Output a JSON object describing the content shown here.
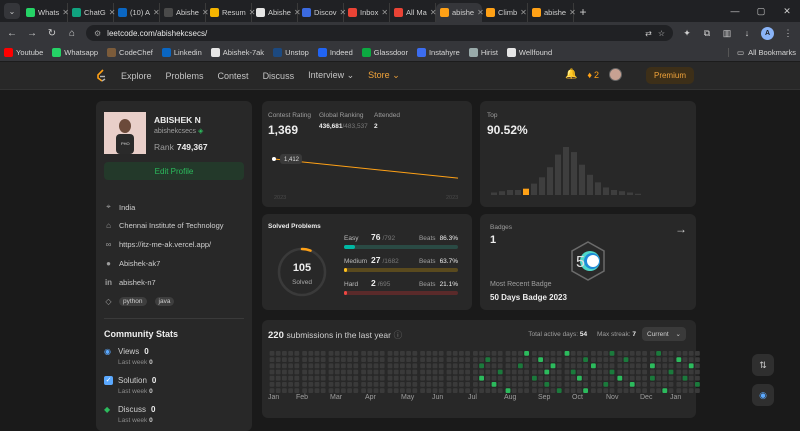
{
  "browser": {
    "tabs": [
      {
        "title": "Whats",
        "color": "#25d366"
      },
      {
        "title": "ChatG",
        "color": "#10a37f"
      },
      {
        "title": "(10) A",
        "color": "#0a66c2"
      },
      {
        "title": "Abishe",
        "color": "#4a4a4a"
      },
      {
        "title": "Resum",
        "color": "#f4b400"
      },
      {
        "title": "Abishe",
        "color": "#e6e6e6"
      },
      {
        "title": "Discov",
        "color": "#3b6ae0"
      },
      {
        "title": "Inbox",
        "color": "#ea4335"
      },
      {
        "title": "All Ma",
        "color": "#ea4335"
      },
      {
        "title": "abishe",
        "color": "#ffa116",
        "active": true
      },
      {
        "title": "Climb",
        "color": "#ffa116"
      },
      {
        "title": "abishe",
        "color": "#ffa116"
      }
    ],
    "new_tab": "+",
    "url": "leetcode.com/abishekcsecs/",
    "bookmarks": [
      {
        "label": "Youtube",
        "color": "#ff0000"
      },
      {
        "label": "Whatsapp",
        "color": "#25d366"
      },
      {
        "label": "CodeChef",
        "color": "#7b5b3a"
      },
      {
        "label": "Linkedin",
        "color": "#0a66c2"
      },
      {
        "label": "Abishek-7ak",
        "color": "#e6e6e6"
      },
      {
        "label": "Unstop",
        "color": "#1c4980"
      },
      {
        "label": "Indeed",
        "color": "#2164f3"
      },
      {
        "label": "Glassdoor",
        "color": "#0caa41"
      },
      {
        "label": "Instahyre",
        "color": "#3c6df0"
      },
      {
        "label": "Hirist",
        "color": "#9aa"
      },
      {
        "label": "Wellfound",
        "color": "#e6e6e6"
      }
    ],
    "all_bookmarks": "All Bookmarks",
    "profile_initial": "A"
  },
  "nav": {
    "links": [
      "Explore",
      "Problems",
      "Contest",
      "Discuss",
      "Interview",
      "Store"
    ],
    "streak": "2",
    "premium": "Premium"
  },
  "profile": {
    "name": "ABISHEK N",
    "username": "abishekcsecs",
    "rank_label": "Rank",
    "rank_value": "749,367",
    "edit_label": "Edit Profile",
    "location": "India",
    "college": "Chennai Institute of Technology",
    "website": "https://itz-me-ak.vercel.app/",
    "github": "Abishek-ak7",
    "linkedin": "abishek-n7",
    "tags": [
      "python",
      "java"
    ]
  },
  "community": {
    "title": "Community Stats",
    "items": [
      {
        "label": "Views",
        "value": "0",
        "sub": "Last week",
        "sub_value": "0"
      },
      {
        "label": "Solution",
        "value": "0",
        "sub": "Last week",
        "sub_value": "0"
      },
      {
        "label": "Discuss",
        "value": "0",
        "sub": "Last week",
        "sub_value": "0"
      }
    ]
  },
  "contest": {
    "rating_label": "Contest Rating",
    "rating_value": "1,369",
    "global_label": "Global Ranking",
    "global_value": "436,681",
    "global_total": "/483,537",
    "attended_label": "Attended",
    "attended_value": "2",
    "point_label": "1,412",
    "axis_start": "2023",
    "axis_end": "2023"
  },
  "top": {
    "label": "Top",
    "value": "90.52%"
  },
  "solved": {
    "title": "Solved Problems",
    "total": "105",
    "total_label": "Solved",
    "rows": [
      {
        "label": "Easy",
        "value": "76",
        "total": "/792",
        "beats_label": "Beats",
        "beats": "86.3%",
        "color": "#00b8a3",
        "track": "#2a4a44",
        "fraction": 0.096
      },
      {
        "label": "Medium",
        "value": "27",
        "total": "/1682",
        "beats_label": "Beats",
        "beats": "63.7%",
        "color": "#ffc01e",
        "track": "#5a4a1e",
        "fraction": 0.016
      },
      {
        "label": "Hard",
        "value": "2",
        "total": "/695",
        "beats_label": "Beats",
        "beats": "21.1%",
        "color": "#ef4743",
        "track": "#5a2a2a",
        "fraction": 0.003
      }
    ]
  },
  "badges": {
    "label": "Badges",
    "count": "1",
    "recent_label": "Most Recent Badge",
    "recent_name": "50 Days Badge 2023"
  },
  "submissions": {
    "count": "220",
    "text": "submissions in the last year",
    "active_label": "Total active days:",
    "active_value": "54",
    "streak_label": "Max streak:",
    "streak_value": "7",
    "select": "Current",
    "months": [
      "Jan",
      "Feb",
      "Mar",
      "Apr",
      "May",
      "Jun",
      "Jul",
      "Aug",
      "Sep",
      "Oct",
      "Nov",
      "Dec",
      "Jan"
    ]
  },
  "chart_data": [
    {
      "type": "line",
      "title": "Contest Rating",
      "x": [
        "2023",
        "2023"
      ],
      "series": [
        {
          "values": [
            1412,
            1369
          ]
        }
      ],
      "point_label": "1,412"
    },
    {
      "type": "bar",
      "title": "Top",
      "values": [
        2,
        3,
        4,
        4,
        5,
        9,
        14,
        22,
        32,
        38,
        34,
        24,
        16,
        10,
        6,
        4,
        3,
        2,
        1
      ],
      "highlight_index": 4
    }
  ],
  "heatmap_active": [
    [
      32,
      2
    ],
    [
      32,
      4
    ],
    [
      33,
      1
    ],
    [
      34,
      5
    ],
    [
      35,
      3
    ],
    [
      36,
      6
    ],
    [
      38,
      2
    ],
    [
      39,
      0
    ],
    [
      40,
      4
    ],
    [
      41,
      1
    ],
    [
      42,
      3
    ],
    [
      42,
      5
    ],
    [
      43,
      2
    ],
    [
      44,
      6
    ],
    [
      45,
      0
    ],
    [
      46,
      3
    ],
    [
      47,
      4
    ],
    [
      48,
      1
    ],
    [
      48,
      6
    ],
    [
      49,
      2
    ],
    [
      51,
      5
    ],
    [
      52,
      0
    ],
    [
      52,
      3
    ],
    [
      53,
      4
    ],
    [
      54,
      1
    ],
    [
      55,
      5
    ],
    [
      58,
      2
    ],
    [
      58,
      4
    ],
    [
      59,
      0
    ],
    [
      60,
      6
    ],
    [
      61,
      3
    ],
    [
      62,
      1
    ],
    [
      63,
      4
    ],
    [
      64,
      2
    ],
    [
      65,
      5
    ]
  ]
}
